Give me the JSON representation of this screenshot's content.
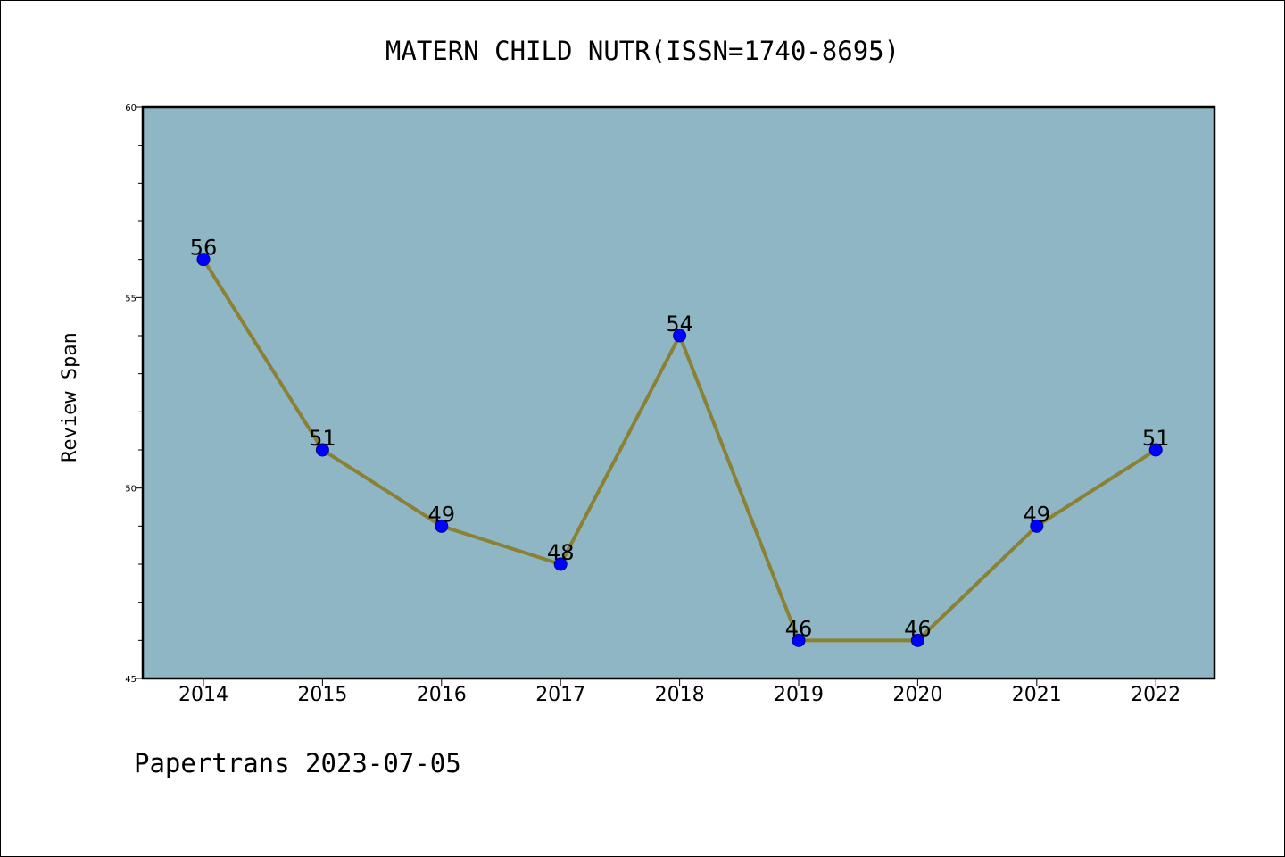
{
  "chart_data": {
    "type": "line",
    "title": "MATERN CHILD NUTR(ISSN=1740-8695)",
    "xlabel": "",
    "ylabel": "Review Span",
    "categories": [
      "2014",
      "2015",
      "2016",
      "2017",
      "2018",
      "2019",
      "2020",
      "2021",
      "2022"
    ],
    "series": [
      {
        "values": [
          56,
          51,
          49,
          48,
          54,
          46,
          46,
          49,
          51
        ]
      }
    ],
    "data_labels": [
      "56",
      "51",
      "49",
      "48",
      "54",
      "46",
      "46",
      "49",
      "51"
    ],
    "ylim": [
      45,
      60
    ],
    "y_ticks": [
      "45",
      "50",
      "55",
      "60"
    ],
    "grid": false,
    "colors": {
      "plot_background": "#8fb6c4",
      "line": "#8b8033",
      "marker": "#0000ff",
      "marker_edge": "#00008b"
    }
  },
  "footer": {
    "credit": "Papertrans 2023-07-05"
  }
}
